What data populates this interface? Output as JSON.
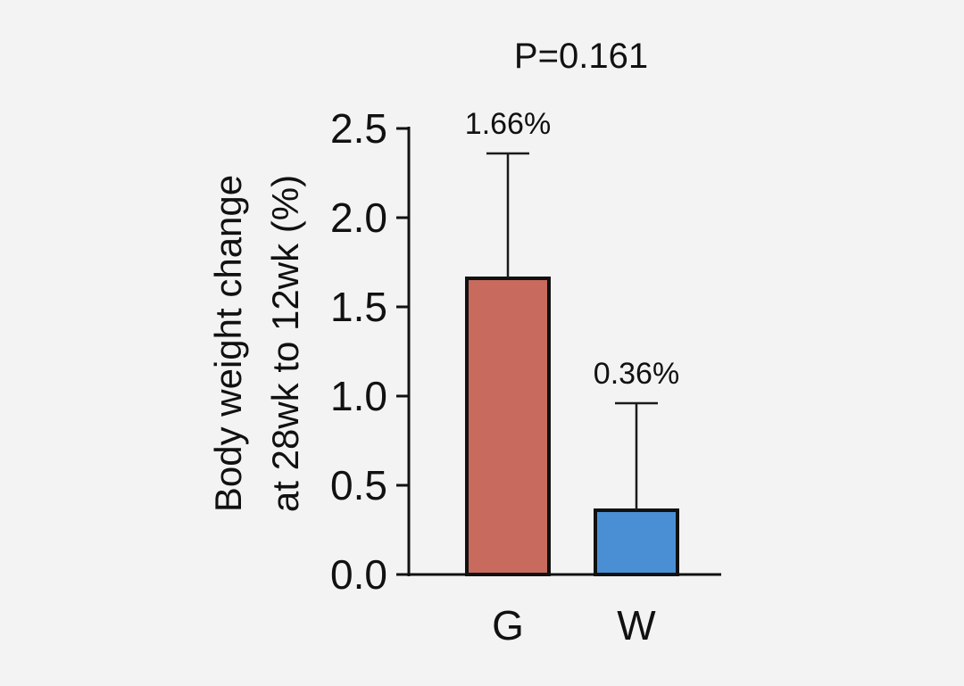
{
  "chart_data": {
    "type": "bar",
    "title": "P=0.161",
    "ylabel": [
      "Body weight change",
      "at 28wk to 12wk (%)"
    ],
    "xlabel": "",
    "categories": [
      "G",
      "W"
    ],
    "values": [
      1.66,
      0.36
    ],
    "error_upper": [
      2.36,
      0.96
    ],
    "data_labels": [
      "1.66%",
      "0.36%"
    ],
    "bar_colors": [
      "#c86a5e",
      "#4a8fd4"
    ],
    "ylim": [
      0,
      2.5
    ],
    "yticks": [
      0.0,
      0.5,
      1.0,
      1.5,
      2.0,
      2.5
    ],
    "ytick_labels": [
      "0.0",
      "0.5",
      "1.0",
      "1.5",
      "2.0",
      "2.5"
    ],
    "grid": false,
    "legend": "none"
  }
}
